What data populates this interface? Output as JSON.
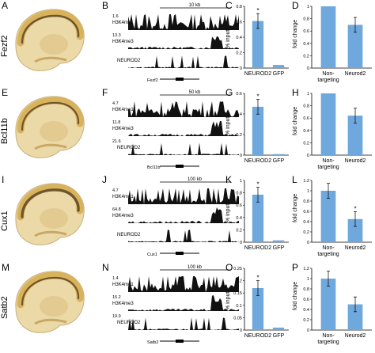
{
  "colors": {
    "bar": "#6fa8dc",
    "track": "#111111",
    "brain_ochre": "#d9b35c",
    "brain_dark": "#5a4526"
  },
  "rows": [
    {
      "gene": "Fezf2",
      "labels": {
        "brain": "A",
        "tracks": "B",
        "chip": "C",
        "fold": "D"
      },
      "scale": "10 kb",
      "tracks": [
        {
          "name": "H3K4me1",
          "value": "1.6"
        },
        {
          "name": "H3K4me3",
          "value": "13.3"
        },
        {
          "name": "NEUROD2",
          "value": ""
        }
      ],
      "locus": "Fezf2",
      "chip": {
        "ylabel": "% input",
        "ticks": [
          "0",
          "0.2",
          "0.4",
          "0.6",
          "0.8"
        ],
        "ymax": 0.8,
        "categories": [
          "NEUROD2",
          "GFP"
        ],
        "values": [
          0.61,
          0.04
        ],
        "star": "*"
      },
      "fold": {
        "ylabel": "fold change",
        "ticks": [
          "0",
          "0.2",
          "0.4",
          "0.6",
          "0.8",
          "1"
        ],
        "ymax": 1.0,
        "categories": [
          "Non-\ntargeting",
          "Neurod2"
        ],
        "values": [
          1.0,
          0.7
        ],
        "star": ""
      }
    },
    {
      "gene": "Bcl11b",
      "labels": {
        "brain": "E",
        "tracks": "F",
        "chip": "G",
        "fold": "H"
      },
      "scale": "50 kb",
      "tracks": [
        {
          "name": "H3K4me1",
          "value": "4.7"
        },
        {
          "name": "H3K4me3",
          "value": "11.8"
        },
        {
          "name": "NEUROD2",
          "value": "21.6"
        }
      ],
      "locus": "Bcl11b",
      "chip": {
        "ylabel": "% input",
        "ticks": [
          "0",
          "0.2",
          "0.4",
          "0.6"
        ],
        "ymax": 0.6,
        "categories": [
          "NEUROD2",
          "GFP"
        ],
        "values": [
          0.47,
          0.01
        ],
        "star": "*"
      },
      "fold": {
        "ylabel": "fold change",
        "ticks": [
          "0",
          "0.2",
          "0.4",
          "0.6",
          "0.8",
          "1"
        ],
        "ymax": 1.0,
        "categories": [
          "Non-\ntargeting",
          "Neurod2"
        ],
        "values": [
          1.0,
          0.64
        ],
        "star": ""
      }
    },
    {
      "gene": "Cux1",
      "labels": {
        "brain": "I",
        "tracks": "J",
        "chip": "K",
        "fold": "L"
      },
      "scale": "100 kb",
      "tracks": [
        {
          "name": "H3K4me1",
          "value": "4.7"
        },
        {
          "name": "H3K4me3",
          "value": "64.8"
        },
        {
          "name": "NEUROD2",
          "value": ""
        }
      ],
      "locus": "Cux1",
      "chip": {
        "ylabel": "% input",
        "ticks": [
          "0",
          "0.2",
          "0.4",
          "0.6",
          "0.8",
          "1"
        ],
        "ymax": 1.0,
        "categories": [
          "NEUROD2",
          "GFP"
        ],
        "values": [
          0.77,
          0.03
        ],
        "star": "*"
      },
      "fold": {
        "ylabel": "fold change",
        "ticks": [
          "0",
          "0.2",
          "0.4",
          "0.6",
          "0.8",
          "1",
          "1.2"
        ],
        "ymax": 1.2,
        "categories": [
          "Non-\ntargeting",
          "Neurod2"
        ],
        "values": [
          1.0,
          0.45
        ],
        "star": "*"
      }
    },
    {
      "gene": "Satb2",
      "labels": {
        "brain": "M",
        "tracks": "N",
        "chip": "O",
        "fold": "P"
      },
      "scale": "100 kb",
      "tracks": [
        {
          "name": "H3K4me1",
          "value": "1.4"
        },
        {
          "name": "H3K4me3",
          "value": "15.2"
        },
        {
          "name": "NEUROD2",
          "value": "19.9"
        }
      ],
      "locus": "Satb2",
      "chip": {
        "ylabel": "% input",
        "ticks": [
          "0",
          "0.05",
          "0.1",
          "0.15",
          "0.2",
          "0.25"
        ],
        "ymax": 0.25,
        "categories": [
          "NEUROD2",
          "GFP"
        ],
        "values": [
          0.17,
          0.01
        ],
        "star": "*"
      },
      "fold": {
        "ylabel": "fold change",
        "ticks": [
          "0",
          "0.2",
          "0.4",
          "0.6",
          "0.8",
          "1",
          "1.2"
        ],
        "ymax": 1.2,
        "categories": [
          "Non-\ntargeting",
          "Neurod2"
        ],
        "values": [
          1.0,
          0.5
        ],
        "star": ""
      }
    }
  ]
}
